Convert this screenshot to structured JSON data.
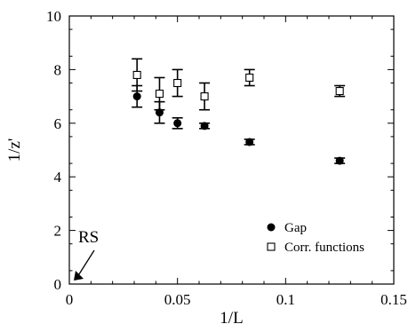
{
  "chart_data": {
    "type": "scatter",
    "xlabel": "1/L",
    "ylabel": "1/z'",
    "xlim": [
      0,
      0.15
    ],
    "ylim": [
      0,
      10
    ],
    "x_ticks": [
      0,
      0.05,
      0.1,
      0.15
    ],
    "x_tick_labels": [
      "0",
      "0.05",
      "0.1",
      "0.15"
    ],
    "y_ticks": [
      0,
      2,
      4,
      6,
      8,
      10
    ],
    "y_tick_labels": [
      "0",
      "2",
      "4",
      "6",
      "8",
      "10"
    ],
    "grid": false,
    "legend_position": "bottom-right",
    "series": [
      {
        "name": "Gap",
        "marker": "filled-circle",
        "color": "#000000",
        "points": [
          {
            "x": 0.0313,
            "y": 7.0,
            "err": 0.4
          },
          {
            "x": 0.0417,
            "y": 6.4,
            "err": 0.4
          },
          {
            "x": 0.05,
            "y": 6.0,
            "err": 0.2
          },
          {
            "x": 0.0625,
            "y": 5.9,
            "err": 0.1
          },
          {
            "x": 0.0833,
            "y": 5.3,
            "err": 0.1
          },
          {
            "x": 0.125,
            "y": 4.6,
            "err": 0.1
          }
        ]
      },
      {
        "name": "Corr. functions",
        "marker": "open-square",
        "color": "#000000",
        "points": [
          {
            "x": 0.0313,
            "y": 7.8,
            "err": 0.6
          },
          {
            "x": 0.0417,
            "y": 7.1,
            "err": 0.6
          },
          {
            "x": 0.05,
            "y": 7.5,
            "err": 0.5
          },
          {
            "x": 0.0625,
            "y": 7.0,
            "err": 0.5
          },
          {
            "x": 0.0833,
            "y": 7.7,
            "err": 0.3
          },
          {
            "x": 0.125,
            "y": 7.2,
            "err": 0.2
          }
        ]
      }
    ],
    "annotations": [
      {
        "text": "RS",
        "arrow_to": {
          "x": 0,
          "y": 0
        }
      }
    ]
  }
}
